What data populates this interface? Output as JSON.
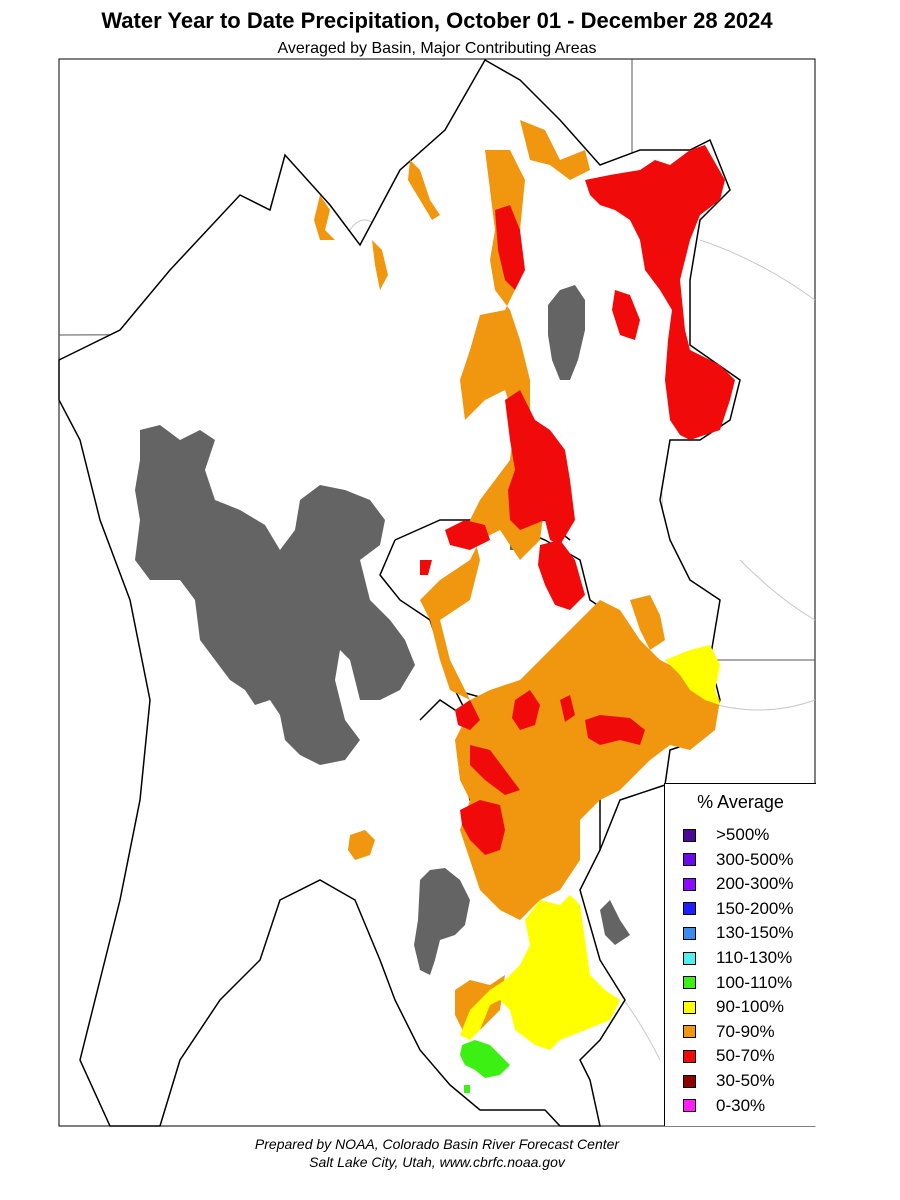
{
  "title": "Water Year to Date Precipitation, October 01  - December 28 2024",
  "subtitle": "Averaged by Basin, Major Contributing Areas",
  "legend": {
    "title": "% Average",
    "items": [
      {
        "label": ">500%",
        "color": "#4b0a96"
      },
      {
        "label": "300-500%",
        "color": "#6a0ae6"
      },
      {
        "label": "200-300%",
        "color": "#8c0aff"
      },
      {
        "label": "150-200%",
        "color": "#1e1eff"
      },
      {
        "label": "130-150%",
        "color": "#3c8cf0"
      },
      {
        "label": "110-130%",
        "color": "#50f0f0"
      },
      {
        "label": "100-110%",
        "color": "#3cf014"
      },
      {
        "label": "90-100%",
        "color": "#ffff00"
      },
      {
        "label": "70-90%",
        "color": "#f0960f"
      },
      {
        "label": "50-70%",
        "color": "#f00a0a"
      },
      {
        "label": "30-50%",
        "color": "#8c0000"
      },
      {
        "label": "0-30%",
        "color": "#ff1eff"
      }
    ]
  },
  "footer": {
    "line1": "Prepared by NOAA, Colorado Basin River Forecast Center",
    "line2": "Salt Lake City, Utah, www.cbrfc.noaa.gov"
  },
  "colors": {
    "lake": "#646464",
    "orange": "#f0960f",
    "red": "#f00a0a",
    "yellow": "#ffff00",
    "green": "#3cf014"
  }
}
